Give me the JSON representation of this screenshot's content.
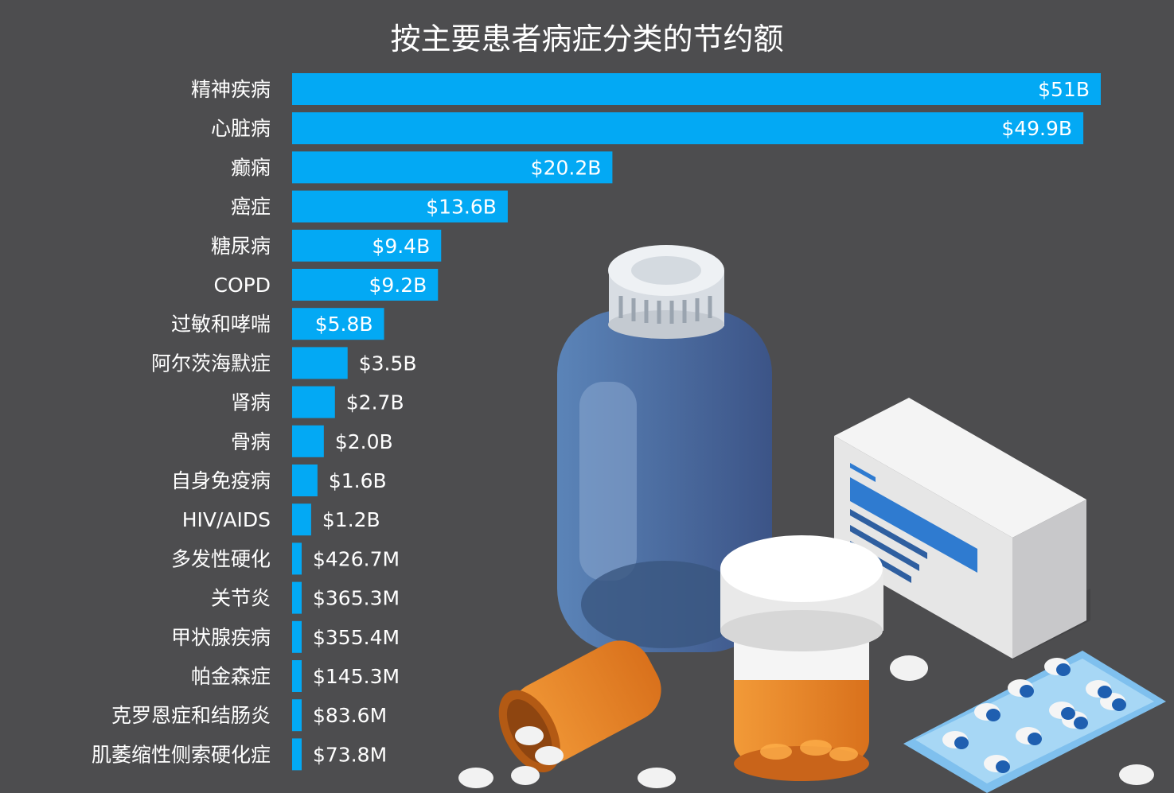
{
  "chart_data": {
    "type": "bar",
    "orientation": "horizontal",
    "title": "按主要患者病症分类的节约额",
    "xlabel": "",
    "ylabel": "",
    "grid": false,
    "legend": "none",
    "bar_color": "#03a9f4",
    "label_color": "#ffffff",
    "background": "#4d4d4f",
    "xlim": [
      0,
      51000000000
    ],
    "categories": [
      "精神疾病",
      "心脏病",
      "癫痫",
      "癌症",
      "糖尿病",
      "COPD",
      "过敏和哮喘",
      "阿尔茨海默症",
      "肾病",
      "骨病",
      "自身免疫病",
      "HIV/AIDS",
      "多发性硬化",
      "关节炎",
      "甲状腺疾病",
      "帕金森症",
      "克罗恩症和结肠炎",
      "肌萎缩性侧索硬化症"
    ],
    "values": [
      51000000000,
      49900000000,
      20200000000,
      13600000000,
      9400000000,
      9200000000,
      5800000000,
      3500000000,
      2700000000,
      2000000000,
      1600000000,
      1200000000,
      426700000,
      365300000,
      355400000,
      145300000,
      83600000,
      73800000
    ],
    "value_labels": [
      "$51B",
      "$49.9B",
      "$20.2B",
      "$13.6B",
      "$9.4B",
      "$9.2B",
      "$5.8B",
      "$3.5B",
      "$2.7B",
      "$2.0B",
      "$1.6B",
      "$1.2B",
      "$426.7M",
      "$365.3M",
      "$355.4M",
      "$145.3M",
      "$83.6M",
      "$73.8M"
    ]
  }
}
